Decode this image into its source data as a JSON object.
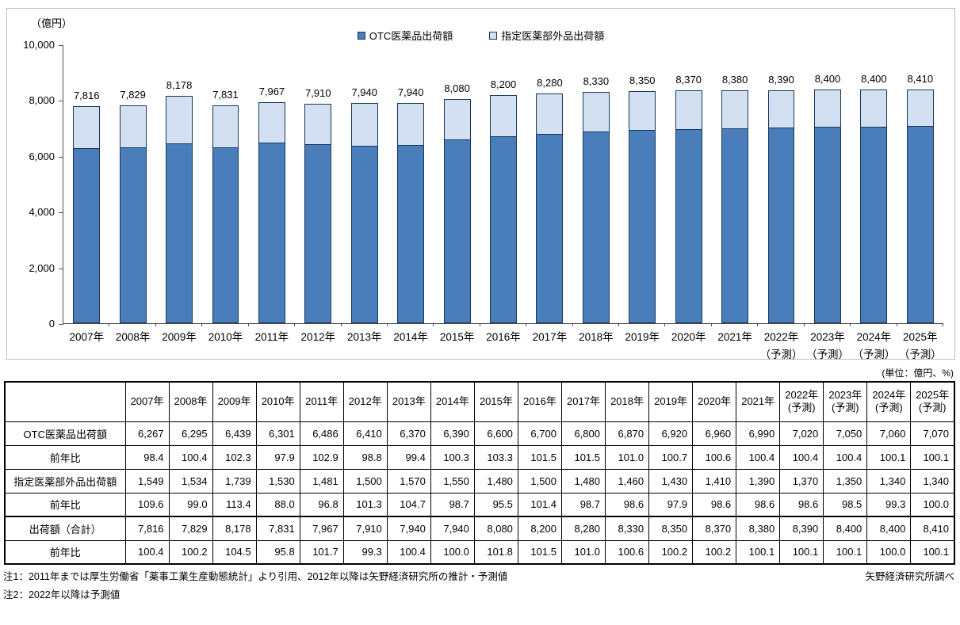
{
  "chart": {
    "y_axis_unit": "（億円）",
    "y_ticks": [
      "10,000",
      "8,000",
      "6,000",
      "4,000",
      "2,000",
      "0"
    ],
    "legend": [
      {
        "label": "OTC医薬品出荷額",
        "color": "#4A7EBB"
      },
      {
        "label": "指定医薬部外品出荷額",
        "color": "#D3E0F2"
      }
    ],
    "colors": {
      "otc": "#4A7EBB",
      "quasi_drug": "#D3E0F2",
      "bar_border": "#17375E"
    }
  },
  "chart_data": {
    "type": "bar",
    "stacked": true,
    "title": "",
    "ylabel": "（億円）",
    "ylim": [
      0,
      10000
    ],
    "grid": false,
    "legend_position": "top-center",
    "categories": [
      "2007年",
      "2008年",
      "2009年",
      "2010年",
      "2011年",
      "2012年",
      "2013年",
      "2014年",
      "2015年",
      "2016年",
      "2017年",
      "2018年",
      "2019年",
      "2020年",
      "2021年",
      "2022年\n（予測）",
      "2023年\n（予測）",
      "2024年\n（予測）",
      "2025年\n（予測）"
    ],
    "series": [
      {
        "name": "OTC医薬品出荷額",
        "values": [
          6267,
          6295,
          6439,
          6301,
          6486,
          6410,
          6370,
          6390,
          6600,
          6700,
          6800,
          6870,
          6920,
          6960,
          6990,
          7020,
          7050,
          7060,
          7070
        ]
      },
      {
        "name": "指定医薬部外品出荷額",
        "values": [
          1549,
          1534,
          1739,
          1530,
          1481,
          1500,
          1570,
          1550,
          1480,
          1500,
          1480,
          1460,
          1430,
          1410,
          1390,
          1370,
          1350,
          1340,
          1340
        ]
      }
    ],
    "totals": [
      7816,
      7829,
      8178,
      7831,
      7967,
      7910,
      7940,
      7940,
      8080,
      8200,
      8280,
      8330,
      8350,
      8370,
      8380,
      8390,
      8400,
      8400,
      8410
    ]
  },
  "table": {
    "unit_label": "(単位：億円、%)",
    "col_headers": [
      "",
      "2007年",
      "2008年",
      "2009年",
      "2010年",
      "2011年",
      "2012年",
      "2013年",
      "2014年",
      "2015年",
      "2016年",
      "2017年",
      "2018年",
      "2019年",
      "2020年",
      "2021年",
      "2022年\n(予測)",
      "2023年\n(予測)",
      "2024年\n(予測)",
      "2025年\n(予測)"
    ],
    "rows": [
      {
        "label": "OTC医薬品出荷額",
        "style": "value",
        "values": [
          "6,267",
          "6,295",
          "6,439",
          "6,301",
          "6,486",
          "6,410",
          "6,370",
          "6,390",
          "6,600",
          "6,700",
          "6,800",
          "6,870",
          "6,920",
          "6,960",
          "6,990",
          "7,020",
          "7,050",
          "7,060",
          "7,070"
        ]
      },
      {
        "label": "前年比",
        "style": "ratio",
        "values": [
          "98.4",
          "100.4",
          "102.3",
          "97.9",
          "102.9",
          "98.8",
          "99.4",
          "100.3",
          "103.3",
          "101.5",
          "101.5",
          "101.0",
          "100.7",
          "100.6",
          "100.4",
          "100.4",
          "100.4",
          "100.1",
          "100.1"
        ]
      },
      {
        "label": "指定医薬部外品出荷額",
        "style": "value",
        "values": [
          "1,549",
          "1,534",
          "1,739",
          "1,530",
          "1,481",
          "1,500",
          "1,570",
          "1,550",
          "1,480",
          "1,500",
          "1,480",
          "1,460",
          "1,430",
          "1,410",
          "1,390",
          "1,370",
          "1,350",
          "1,340",
          "1,340"
        ]
      },
      {
        "label": "前年比",
        "style": "ratio",
        "values": [
          "109.6",
          "99.0",
          "113.4",
          "88.0",
          "96.8",
          "101.3",
          "104.7",
          "98.7",
          "95.5",
          "101.4",
          "98.7",
          "98.6",
          "97.9",
          "98.6",
          "98.6",
          "98.6",
          "98.5",
          "99.3",
          "100.0"
        ]
      },
      {
        "label": "出荷額（合計）",
        "style": "total",
        "values": [
          "7,816",
          "7,829",
          "8,178",
          "7,831",
          "7,967",
          "7,910",
          "7,940",
          "7,940",
          "8,080",
          "8,200",
          "8,280",
          "8,330",
          "8,350",
          "8,370",
          "8,380",
          "8,390",
          "8,400",
          "8,400",
          "8,410"
        ]
      },
      {
        "label": "前年比",
        "style": "ratio",
        "values": [
          "100.4",
          "100.2",
          "104.5",
          "95.8",
          "101.7",
          "99.3",
          "100.4",
          "100.0",
          "101.8",
          "101.5",
          "101.0",
          "100.6",
          "100.2",
          "100.2",
          "100.1",
          "100.1",
          "100.1",
          "100.0",
          "100.1"
        ]
      }
    ]
  },
  "footer": {
    "note1": "注1：2011年までは厚生労働省「薬事工業生産動態統計」より引用、2012年以降は矢野経済研究所の推計・予測値",
    "note2": "注2：2022年以降は予測値",
    "credit": "矢野経済研究所調べ"
  }
}
